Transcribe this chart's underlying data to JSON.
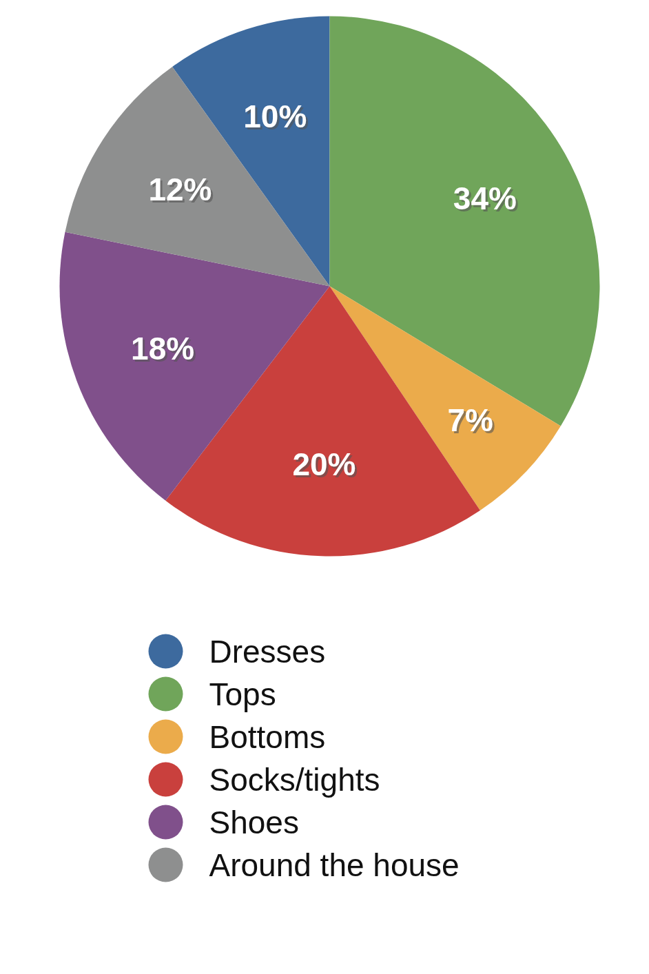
{
  "chart_data": {
    "type": "pie",
    "categories": [
      "Dresses",
      "Tops",
      "Bottoms",
      "Socks/tights",
      "Shoes",
      "Around the house"
    ],
    "values": [
      10,
      34,
      7,
      20,
      18,
      12
    ],
    "colors": [
      "#3d6a9e",
      "#70a55a",
      "#ebab4b",
      "#c9403d",
      "#80508b",
      "#8e8f8f"
    ],
    "value_labels": [
      "10%",
      "34%",
      "7%",
      "20%",
      "18%",
      "12%"
    ],
    "legend": "bottom"
  }
}
